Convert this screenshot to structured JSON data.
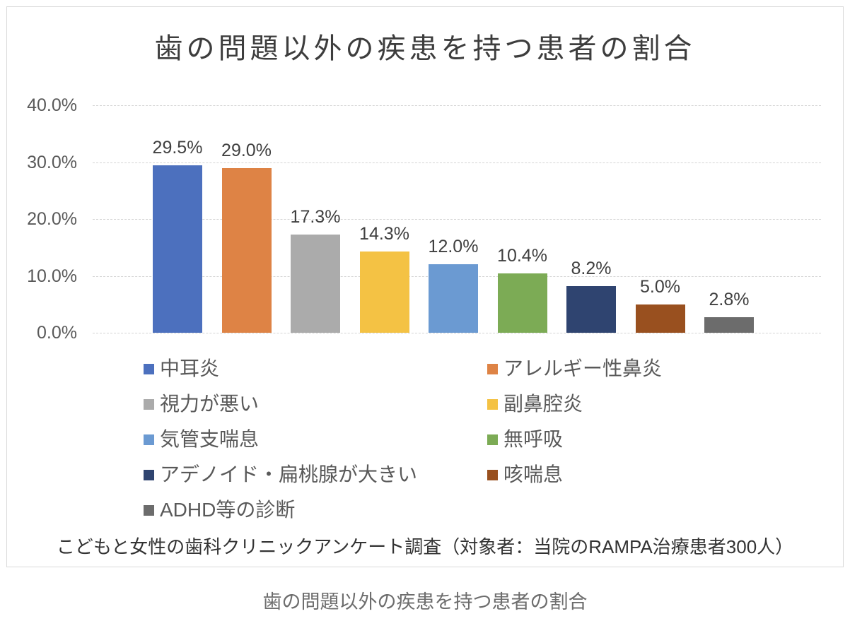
{
  "page": {
    "caption": "歯の問題以外の疾患を持つ患者の割合",
    "footnote": "こどもと女性の歯科クリニックアンケート調査（対象者：当院のRAMPA治療患者300人）"
  },
  "chart_data": {
    "type": "bar",
    "title": "歯の問題以外の疾患を持つ患者の割合",
    "categories": [
      "中耳炎",
      "アレルギー性鼻炎",
      "視力が悪い",
      "副鼻腔炎",
      "気管支喘息",
      "無呼吸",
      "アデノイド・扁桃腺が大きい",
      "咳喘息",
      "ADHD等の診断"
    ],
    "values": [
      29.5,
      29.0,
      17.3,
      14.3,
      12.0,
      10.4,
      8.2,
      5.0,
      2.8
    ],
    "data_labels": [
      "29.5%",
      "29.0%",
      "17.3%",
      "14.3%",
      "12.0%",
      "10.4%",
      "8.2%",
      "5.0%",
      "2.8%"
    ],
    "series_colors": [
      "#4C70BE",
      "#DE8345",
      "#ABABAB",
      "#F4C244",
      "#6B9AD2",
      "#7CAB55",
      "#2F4470",
      "#99501F",
      "#6C6C6C"
    ],
    "ylim": [
      0,
      40
    ],
    "ytick_labels": [
      "40.0%",
      "30.0%",
      "20.0%",
      "10.0%",
      "0.0%"
    ],
    "grid": true,
    "legend_position": "bottom-two-columns"
  }
}
